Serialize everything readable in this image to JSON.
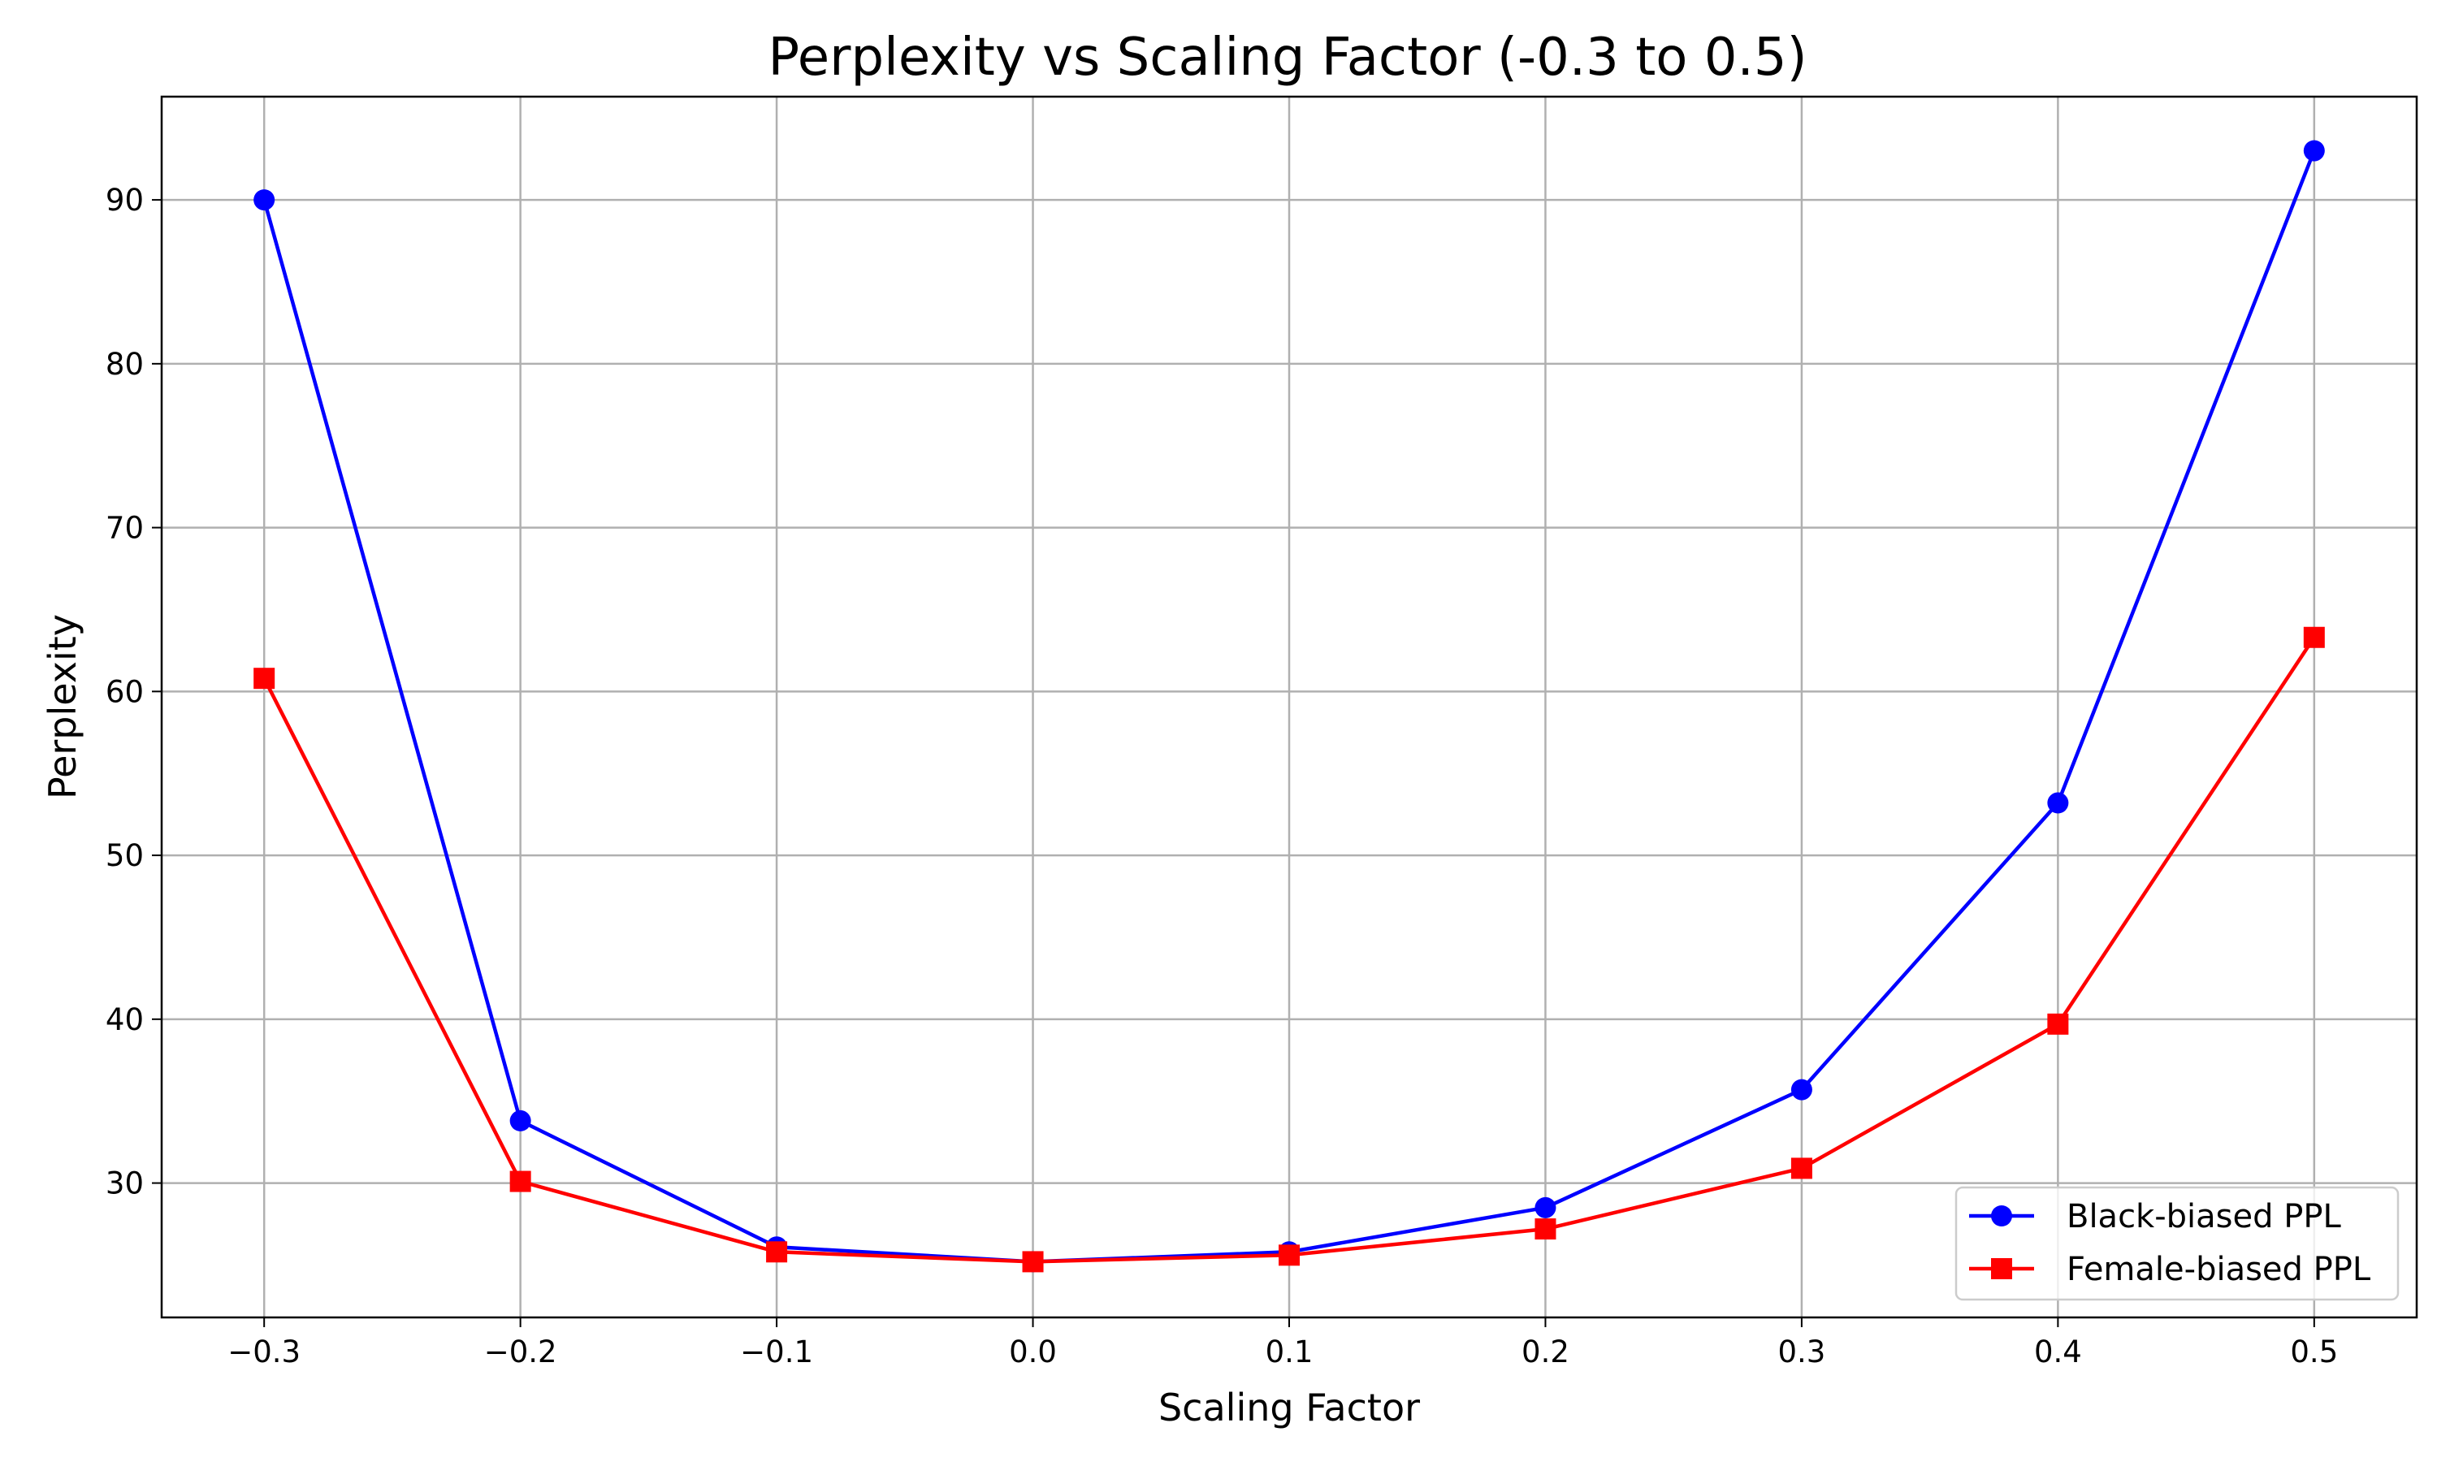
{
  "chart_data": {
    "type": "line",
    "title": "Perplexity vs Scaling Factor (-0.3 to 0.5)",
    "xlabel": "Scaling Factor",
    "ylabel": "Perplexity",
    "x": [
      -0.3,
      -0.2,
      -0.1,
      0.0,
      0.1,
      0.2,
      0.3,
      0.4,
      0.5
    ],
    "x_tick_labels": [
      "−0.3",
      "−0.2",
      "−0.1",
      "0.0",
      "0.1",
      "0.2",
      "0.3",
      "0.4",
      "0.5"
    ],
    "y_ticks": [
      30,
      40,
      50,
      60,
      70,
      80,
      90
    ],
    "xlim": [
      -0.34,
      0.54
    ],
    "ylim": [
      21.8,
      96.3
    ],
    "grid": true,
    "legend_position": "lower-right",
    "series": [
      {
        "name": "Black-biased PPL",
        "color": "#0000ff",
        "marker": "circle",
        "values": [
          90.0,
          33.8,
          26.1,
          25.2,
          25.8,
          28.5,
          35.7,
          53.2,
          93.0
        ]
      },
      {
        "name": "Female-biased PPL",
        "color": "#ff0000",
        "marker": "square",
        "values": [
          60.8,
          30.1,
          25.8,
          25.2,
          25.6,
          27.2,
          30.9,
          39.7,
          63.3
        ]
      }
    ]
  }
}
